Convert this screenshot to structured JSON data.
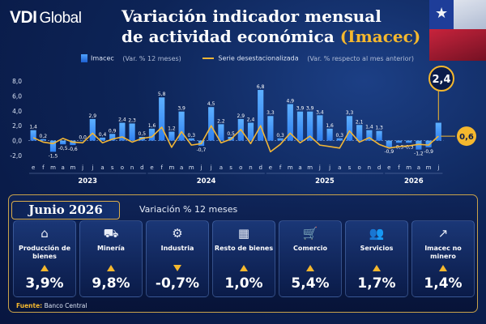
{
  "brand": {
    "logo_main": "VDI",
    "logo_sub": "Global"
  },
  "header": {
    "title_line1": "Variación indicador mensual",
    "title_line2_prefix": "de actividad económica ",
    "title_line2_highlight": "(Imacec)"
  },
  "legend": {
    "bar_label": "Imacec",
    "bar_note": "(Var. % 12 meses)",
    "line_label": "Serie desestacionalizada",
    "line_note": "(Var. % respecto al mes anterior)"
  },
  "colors": {
    "bar": "#2f7ff0",
    "line": "#f2b636",
    "accent": "#f5b82e"
  },
  "chart_data": {
    "type": "bar",
    "title": "",
    "categories": [
      "e",
      "f",
      "m",
      "a",
      "m",
      "j",
      "j",
      "a",
      "s",
      "o",
      "n",
      "d",
      "e",
      "f",
      "m",
      "a",
      "m",
      "j",
      "j",
      "a",
      "s",
      "o",
      "n",
      "d",
      "e",
      "f",
      "m",
      "a",
      "m",
      "j",
      "j",
      "a",
      "s",
      "o",
      "n",
      "d",
      "e",
      "f",
      "m",
      "a",
      "m",
      "j"
    ],
    "years": [
      {
        "label": "2023",
        "start": 0,
        "end": 11
      },
      {
        "label": "2024",
        "start": 12,
        "end": 23
      },
      {
        "label": "2025",
        "start": 24,
        "end": 35
      },
      {
        "label": "2026",
        "start": 36,
        "end": 41
      }
    ],
    "series": [
      {
        "name": "Imacec",
        "kind": "bar",
        "values": [
          1.4,
          0.2,
          -1.5,
          -0.5,
          -0.6,
          0.0,
          2.9,
          0.4,
          0.9,
          2.4,
          2.3,
          0.5,
          1.6,
          5.8,
          1.2,
          3.9,
          0.3,
          -0.7,
          4.5,
          2.2,
          0.5,
          2.9,
          2.4,
          6.8,
          3.3,
          0.3,
          4.9,
          3.9,
          3.9,
          3.4,
          1.6,
          0.3,
          3.3,
          2.1,
          1.4,
          1.3,
          -0.9,
          -0.3,
          -0.3,
          -1.2,
          -0.9,
          2.4
        ],
        "labels": [
          "1,4",
          "0,2",
          "-1,5",
          "-0,5",
          "-0,6",
          "0,0",
          "2,9",
          "0,4",
          "0,9",
          "2,4",
          "2,3",
          "0,5",
          "1,6",
          "5,8",
          "1,2",
          "3,9",
          "0,3",
          "-0,7",
          "4,5",
          "2,2",
          "0,5",
          "2,9",
          "2,4",
          "6,8",
          "3,3",
          "0,3",
          "4,9",
          "3,9",
          "3,9",
          "3,4",
          "1,6",
          "0,3",
          "3,3",
          "2,1",
          "1,4",
          "1,3",
          "-0,9",
          "-0,3",
          "-0,3",
          "-1,2",
          "-0,9",
          "2,4"
        ]
      },
      {
        "name": "Serie desestacionalizada",
        "kind": "line",
        "values": [
          0.4,
          -0.2,
          -0.4,
          0.3,
          -0.2,
          -0.3,
          1.0,
          -0.3,
          0.2,
          0.5,
          -0.2,
          0.3,
          0.5,
          1.8,
          -0.9,
          1.2,
          -0.6,
          -0.4,
          2.0,
          -0.3,
          0.2,
          1.5,
          -0.4,
          2.0,
          -1.5,
          -0.5,
          1.0,
          -0.3,
          0.6,
          -0.6,
          -0.8,
          -1.0,
          1.3,
          -0.2,
          0.4,
          -0.5,
          -1.0,
          -0.8,
          -0.7,
          -0.5,
          -0.6,
          0.6
        ]
      }
    ],
    "ylim": [
      -2.0,
      8.0
    ],
    "yticks": [
      -2.0,
      0.0,
      2.0,
      4.0,
      6.0,
      8.0
    ],
    "ytick_labels": [
      "-2,0",
      "0,0",
      "2,0",
      "4,0",
      "6,0",
      "8,0"
    ],
    "callouts": {
      "last_bar": "2,4",
      "last_line": "0,6"
    },
    "grid": false
  },
  "panel": {
    "title": "Junio 2026",
    "subtitle": "Variación % 12 meses"
  },
  "cards": [
    {
      "name": "Producción de bienes",
      "icon": "factory-icon",
      "glyph": "⌂",
      "direction": "up",
      "value": "3,9%"
    },
    {
      "name": "Minería",
      "icon": "mining-truck-icon",
      "glyph": "⛟",
      "direction": "up",
      "value": "9,8%"
    },
    {
      "name": "Industria",
      "icon": "industry-icon",
      "glyph": "⚙",
      "direction": "down",
      "value": "-0,7%"
    },
    {
      "name": "Resto de bienes",
      "icon": "boxes-icon",
      "glyph": "▦",
      "direction": "up",
      "value": "1,0%"
    },
    {
      "name": "Comercio",
      "icon": "shopping-cart-icon",
      "glyph": "🛒",
      "direction": "up",
      "value": "5,4%"
    },
    {
      "name": "Servicios",
      "icon": "people-icon",
      "glyph": "👥",
      "direction": "up",
      "value": "1,7%"
    },
    {
      "name": "Imacec no minero",
      "icon": "trend-chart-icon",
      "glyph": "↗",
      "direction": "up",
      "value": "1,4%"
    }
  ],
  "footer": {
    "source_label": "Fuente:",
    "source_value": "Banco Central"
  }
}
